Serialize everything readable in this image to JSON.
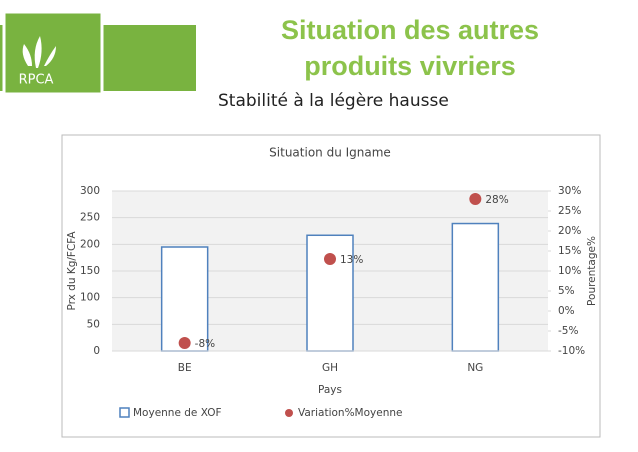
{
  "logo": "RPCA",
  "slide_title": "Situation des autres produits vivriers",
  "slide_subtitle": "Stabilité à la légère hausse",
  "chart_data": {
    "type": "bar",
    "title": "Situation du Igname",
    "categories": [
      "BE",
      "GH",
      "NG"
    ],
    "series": [
      {
        "name": "Moyenne de XOF",
        "color": "#4f81bd",
        "values": [
          195,
          217,
          239
        ]
      },
      {
        "name": "Variation%Moyenne",
        "type": "scatter",
        "axis": "y2",
        "color": "#c0504d",
        "values": [
          -8,
          13,
          28
        ],
        "value_labels": [
          "-8%",
          "13%",
          "28%"
        ]
      }
    ],
    "x_label": "Pays",
    "y_label": "Prx du Kg/FCFA",
    "y2_label": "Pourentage%",
    "ylim": [
      0,
      300
    ],
    "yticks": [
      0,
      50,
      100,
      150,
      200,
      250,
      300
    ],
    "y2lim": [
      -10,
      30
    ],
    "y2ticks": [
      {
        "value": -10,
        "label": "-10%"
      },
      {
        "value": -5,
        "label": "-5%"
      },
      {
        "value": 0,
        "label": "0%"
      },
      {
        "value": 5,
        "label": "5%"
      },
      {
        "value": 10,
        "label": "10%"
      },
      {
        "value": 15,
        "label": "15%"
      },
      {
        "value": 20,
        "label": "20%"
      },
      {
        "value": 25,
        "label": "25%"
      },
      {
        "value": 30,
        "label": "30%"
      }
    ],
    "grid": true,
    "legend": "bottom"
  }
}
